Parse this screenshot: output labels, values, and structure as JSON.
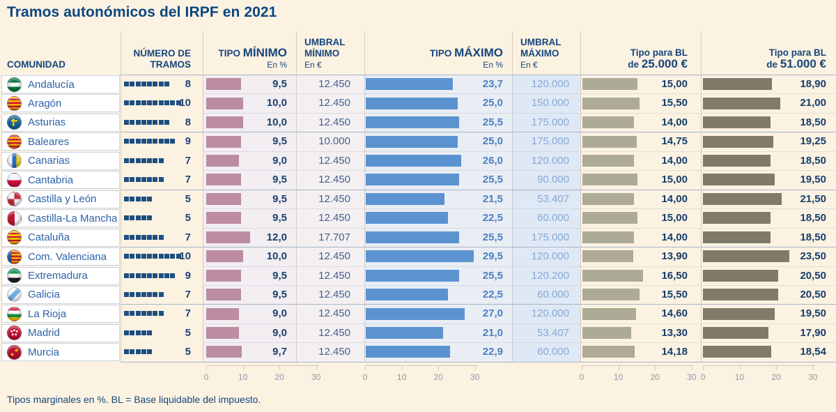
{
  "title": "Tramos autonómicos del IRPF en 2021",
  "footnote": "Tipos marginales en %. BL = Base liquidable del impuesto.",
  "columns": {
    "comunidad": "COMUNIDAD",
    "tramos_line1": "NÚMERO DE",
    "tramos_line2": "TRAMOS",
    "tipo_min_small": "TIPO ",
    "tipo_min_big": "MÍNIMO",
    "tipo_min_unit": "En %",
    "umbral_min_line1": "UMBRAL",
    "umbral_min_line2": "MÍNIMO",
    "umbral_min_unit": "En €",
    "tipo_max_small": "TIPO ",
    "tipo_max_big": "MÁXIMO",
    "tipo_max_unit": "En %",
    "umbral_max_line1": "UMBRAL",
    "umbral_max_line2": "MÁXIMO",
    "umbral_max_unit": "En €",
    "bl25_line1": "Tipo para BL",
    "bl25_pre": "de ",
    "bl25_big": "25.000 €",
    "bl51_line1": "Tipo para BL",
    "bl51_pre": "de ",
    "bl51_big": "51.000 €"
  },
  "axis_ticks": [
    "0",
    "10",
    "20",
    "30"
  ],
  "colors": {
    "background": "#fcf2e2",
    "title_text": "#0d467f",
    "community_text": "#2d63a7",
    "tramos_square": "#1d4e80",
    "bar_tipo_minimo": "#bc8da2",
    "bar_tipo_maximo": "#5b93d0",
    "bar_bl_25000": "#adab96",
    "bar_bl_51000": "#7f7a6a",
    "umbral_maximo_text": "#86a9d5",
    "tipo_maximo_text": "#4b80c2"
  },
  "rows": [
    {
      "name": "Andalucía",
      "flag": "andalucia",
      "tramos": "8",
      "tipo_min": "9,5",
      "umbral_min": "12.450",
      "tipo_max": "23,7",
      "umbral_max": "120.000",
      "bl25": "15,00",
      "bl51": "18,90"
    },
    {
      "name": "Aragón",
      "flag": "aragon",
      "tramos": "10",
      "tipo_min": "10,0",
      "umbral_min": "12.450",
      "tipo_max": "25,0",
      "umbral_max": "150.000",
      "bl25": "15,50",
      "bl51": "21,00"
    },
    {
      "name": "Asturias",
      "flag": "asturias",
      "tramos": "8",
      "tipo_min": "10,0",
      "umbral_min": "12.450",
      "tipo_max": "25,5",
      "umbral_max": "175.000",
      "bl25": "14,00",
      "bl51": "18,50"
    },
    {
      "name": "Baleares",
      "flag": "baleares",
      "tramos": "9",
      "tipo_min": "9,5",
      "umbral_min": "10.000",
      "tipo_max": "25,0",
      "umbral_max": "175.000",
      "bl25": "14,75",
      "bl51": "19,25"
    },
    {
      "name": "Canarias",
      "flag": "canarias",
      "tramos": "7",
      "tipo_min": "9,0",
      "umbral_min": "12.450",
      "tipo_max": "26,0",
      "umbral_max": "120.000",
      "bl25": "14,00",
      "bl51": "18,50"
    },
    {
      "name": "Cantabria",
      "flag": "cantabria",
      "tramos": "7",
      "tipo_min": "9,5",
      "umbral_min": "12.450",
      "tipo_max": "25,5",
      "umbral_max": "90.000",
      "bl25": "15,00",
      "bl51": "19,50"
    },
    {
      "name": "Castilla y León",
      "flag": "castillayleon",
      "tramos": "5",
      "tipo_min": "9,5",
      "umbral_min": "12.450",
      "tipo_max": "21,5",
      "umbral_max": "53.407",
      "bl25": "14,00",
      "bl51": "21,50"
    },
    {
      "name": "Castilla-La Mancha",
      "flag": "castillalamancha",
      "tramos": "5",
      "tipo_min": "9,5",
      "umbral_min": "12.450",
      "tipo_max": "22,5",
      "umbral_max": "60.000",
      "bl25": "15,00",
      "bl51": "18,50"
    },
    {
      "name": "Cataluña",
      "flag": "cataluna",
      "tramos": "7",
      "tipo_min": "12,0",
      "umbral_min": "17.707",
      "tipo_max": "25,5",
      "umbral_max": "175.000",
      "bl25": "14,00",
      "bl51": "18,50"
    },
    {
      "name": "Com. Valenciana",
      "flag": "valenciana",
      "tramos": "10",
      "tipo_min": "10,0",
      "umbral_min": "12.450",
      "tipo_max": "29,5",
      "umbral_max": "120.000",
      "bl25": "13,90",
      "bl51": "23,50"
    },
    {
      "name": "Extremadura",
      "flag": "extremadura",
      "tramos": "9",
      "tipo_min": "9,5",
      "umbral_min": "12.450",
      "tipo_max": "25,5",
      "umbral_max": "120.200",
      "bl25": "16,50",
      "bl51": "20,50"
    },
    {
      "name": "Galicia",
      "flag": "galicia",
      "tramos": "7",
      "tipo_min": "9,5",
      "umbral_min": "12.450",
      "tipo_max": "22,5",
      "umbral_max": "60.000",
      "bl25": "15,50",
      "bl51": "20,50"
    },
    {
      "name": "La Rioja",
      "flag": "larioja",
      "tramos": "7",
      "tipo_min": "9,0",
      "umbral_min": "12.450",
      "tipo_max": "27,0",
      "umbral_max": "120.000",
      "bl25": "14,60",
      "bl51": "19,50"
    },
    {
      "name": "Madrid",
      "flag": "madrid",
      "tramos": "5",
      "tipo_min": "9,0",
      "umbral_min": "12.450",
      "tipo_max": "21,0",
      "umbral_max": "53.407",
      "bl25": "13,30",
      "bl51": "17,90"
    },
    {
      "name": "Murcia",
      "flag": "murcia",
      "tramos": "5",
      "tipo_min": "9,7",
      "umbral_min": "12.450",
      "tipo_max": "22,9",
      "umbral_max": "60.000",
      "bl25": "14,18",
      "bl51": "18,54"
    }
  ],
  "chart_data": {
    "type": "bar",
    "orientation": "horizontal",
    "title": "Tramos autonómicos del IRPF en 2021",
    "categories": [
      "Andalucía",
      "Aragón",
      "Asturias",
      "Baleares",
      "Canarias",
      "Cantabria",
      "Castilla y León",
      "Castilla-La Mancha",
      "Cataluña",
      "Com. Valenciana",
      "Extremadura",
      "Galicia",
      "La Rioja",
      "Madrid",
      "Murcia"
    ],
    "series": [
      {
        "name": "Número de tramos",
        "values": [
          8,
          10,
          8,
          9,
          7,
          7,
          5,
          5,
          7,
          10,
          9,
          7,
          7,
          5,
          5
        ]
      },
      {
        "name": "Tipo mínimo (En %)",
        "values": [
          9.5,
          10.0,
          10.0,
          9.5,
          9.0,
          9.5,
          9.5,
          9.5,
          12.0,
          10.0,
          9.5,
          9.5,
          9.0,
          9.0,
          9.7
        ]
      },
      {
        "name": "Umbral mínimo (En €)",
        "values": [
          12450,
          12450,
          12450,
          10000,
          12450,
          12450,
          12450,
          12450,
          17707,
          12450,
          12450,
          12450,
          12450,
          12450,
          12450
        ]
      },
      {
        "name": "Tipo máximo (En %)",
        "values": [
          23.7,
          25.0,
          25.5,
          25.0,
          26.0,
          25.5,
          21.5,
          22.5,
          25.5,
          29.5,
          25.5,
          22.5,
          27.0,
          21.0,
          22.9
        ]
      },
      {
        "name": "Umbral máximo (En €)",
        "values": [
          120000,
          150000,
          175000,
          175000,
          120000,
          90000,
          53407,
          60000,
          175000,
          120000,
          120200,
          60000,
          120000,
          53407,
          60000
        ]
      },
      {
        "name": "Tipo para BL de 25.000 €",
        "values": [
          15.0,
          15.5,
          14.0,
          14.75,
          14.0,
          15.0,
          14.0,
          15.0,
          14.0,
          13.9,
          16.5,
          15.5,
          14.6,
          13.3,
          14.18
        ]
      },
      {
        "name": "Tipo para BL de 51.000 €",
        "values": [
          18.9,
          21.0,
          18.5,
          19.25,
          18.5,
          19.5,
          21.5,
          18.5,
          18.5,
          23.5,
          20.5,
          20.5,
          19.5,
          17.9,
          18.54
        ]
      }
    ],
    "bar_axes_ticks": [
      0,
      10,
      20,
      30
    ],
    "bar_axes_range": [
      0,
      33
    ],
    "grid": false,
    "legend": "none"
  }
}
